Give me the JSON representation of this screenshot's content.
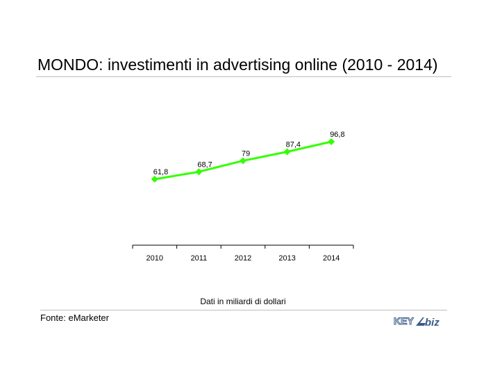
{
  "page": {
    "title": "MONDO: investimenti in advertising online (2010 - 2014)",
    "caption": "Dati in miliardi di dollari",
    "source": "Fonte: eMarketer",
    "logo": {
      "text_main": "KEY",
      "text_sub": "biz",
      "name": "key4biz-logo"
    }
  },
  "colors": {
    "series_line": "#33ff00",
    "axis": "#000000",
    "rule": "#bdbdbd",
    "logo_blue": "#3a5a8a"
  },
  "chart_data": {
    "type": "line",
    "title": "",
    "xlabel": "",
    "ylabel": "",
    "categories": [
      "2010",
      "2011",
      "2012",
      "2013",
      "2014"
    ],
    "series": [
      {
        "values": [
          61.8,
          68.7,
          79,
          87.4,
          96.8
        ],
        "labels": [
          "61,8",
          "68,7",
          "79",
          "87,4",
          "96,8"
        ]
      }
    ],
    "grid": false,
    "legend": "none",
    "marker": "diamond"
  }
}
